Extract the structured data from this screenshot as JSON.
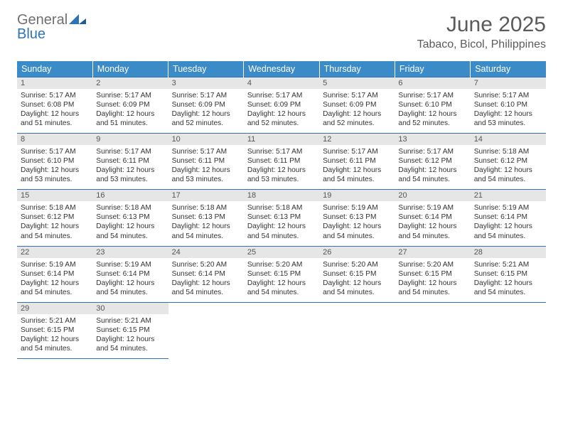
{
  "logo": {
    "word1": "General",
    "word2": "Blue",
    "mark_color": "#2e74b5",
    "word1_color": "#706f6f",
    "word2_color": "#2e74b5"
  },
  "title": "June 2025",
  "location": "Tabaco, Bicol, Philippines",
  "header_bg": "#3b8bc9",
  "daybar_bg": "#e6e6e6",
  "rule_color": "#2e74b5",
  "weekdays": [
    "Sunday",
    "Monday",
    "Tuesday",
    "Wednesday",
    "Thursday",
    "Friday",
    "Saturday"
  ],
  "weeks": [
    [
      {
        "day": "1",
        "sunrise": "5:17 AM",
        "sunset": "6:08 PM",
        "daylight": "12 hours and 51 minutes."
      },
      {
        "day": "2",
        "sunrise": "5:17 AM",
        "sunset": "6:09 PM",
        "daylight": "12 hours and 51 minutes."
      },
      {
        "day": "3",
        "sunrise": "5:17 AM",
        "sunset": "6:09 PM",
        "daylight": "12 hours and 52 minutes."
      },
      {
        "day": "4",
        "sunrise": "5:17 AM",
        "sunset": "6:09 PM",
        "daylight": "12 hours and 52 minutes."
      },
      {
        "day": "5",
        "sunrise": "5:17 AM",
        "sunset": "6:09 PM",
        "daylight": "12 hours and 52 minutes."
      },
      {
        "day": "6",
        "sunrise": "5:17 AM",
        "sunset": "6:10 PM",
        "daylight": "12 hours and 52 minutes."
      },
      {
        "day": "7",
        "sunrise": "5:17 AM",
        "sunset": "6:10 PM",
        "daylight": "12 hours and 53 minutes."
      }
    ],
    [
      {
        "day": "8",
        "sunrise": "5:17 AM",
        "sunset": "6:10 PM",
        "daylight": "12 hours and 53 minutes."
      },
      {
        "day": "9",
        "sunrise": "5:17 AM",
        "sunset": "6:11 PM",
        "daylight": "12 hours and 53 minutes."
      },
      {
        "day": "10",
        "sunrise": "5:17 AM",
        "sunset": "6:11 PM",
        "daylight": "12 hours and 53 minutes."
      },
      {
        "day": "11",
        "sunrise": "5:17 AM",
        "sunset": "6:11 PM",
        "daylight": "12 hours and 53 minutes."
      },
      {
        "day": "12",
        "sunrise": "5:17 AM",
        "sunset": "6:11 PM",
        "daylight": "12 hours and 54 minutes."
      },
      {
        "day": "13",
        "sunrise": "5:17 AM",
        "sunset": "6:12 PM",
        "daylight": "12 hours and 54 minutes."
      },
      {
        "day": "14",
        "sunrise": "5:18 AM",
        "sunset": "6:12 PM",
        "daylight": "12 hours and 54 minutes."
      }
    ],
    [
      {
        "day": "15",
        "sunrise": "5:18 AM",
        "sunset": "6:12 PM",
        "daylight": "12 hours and 54 minutes."
      },
      {
        "day": "16",
        "sunrise": "5:18 AM",
        "sunset": "6:13 PM",
        "daylight": "12 hours and 54 minutes."
      },
      {
        "day": "17",
        "sunrise": "5:18 AM",
        "sunset": "6:13 PM",
        "daylight": "12 hours and 54 minutes."
      },
      {
        "day": "18",
        "sunrise": "5:18 AM",
        "sunset": "6:13 PM",
        "daylight": "12 hours and 54 minutes."
      },
      {
        "day": "19",
        "sunrise": "5:19 AM",
        "sunset": "6:13 PM",
        "daylight": "12 hours and 54 minutes."
      },
      {
        "day": "20",
        "sunrise": "5:19 AM",
        "sunset": "6:14 PM",
        "daylight": "12 hours and 54 minutes."
      },
      {
        "day": "21",
        "sunrise": "5:19 AM",
        "sunset": "6:14 PM",
        "daylight": "12 hours and 54 minutes."
      }
    ],
    [
      {
        "day": "22",
        "sunrise": "5:19 AM",
        "sunset": "6:14 PM",
        "daylight": "12 hours and 54 minutes."
      },
      {
        "day": "23",
        "sunrise": "5:19 AM",
        "sunset": "6:14 PM",
        "daylight": "12 hours and 54 minutes."
      },
      {
        "day": "24",
        "sunrise": "5:20 AM",
        "sunset": "6:14 PM",
        "daylight": "12 hours and 54 minutes."
      },
      {
        "day": "25",
        "sunrise": "5:20 AM",
        "sunset": "6:15 PM",
        "daylight": "12 hours and 54 minutes."
      },
      {
        "day": "26",
        "sunrise": "5:20 AM",
        "sunset": "6:15 PM",
        "daylight": "12 hours and 54 minutes."
      },
      {
        "day": "27",
        "sunrise": "5:20 AM",
        "sunset": "6:15 PM",
        "daylight": "12 hours and 54 minutes."
      },
      {
        "day": "28",
        "sunrise": "5:21 AM",
        "sunset": "6:15 PM",
        "daylight": "12 hours and 54 minutes."
      }
    ],
    [
      {
        "day": "29",
        "sunrise": "5:21 AM",
        "sunset": "6:15 PM",
        "daylight": "12 hours and 54 minutes."
      },
      {
        "day": "30",
        "sunrise": "5:21 AM",
        "sunset": "6:15 PM",
        "daylight": "12 hours and 54 minutes."
      },
      null,
      null,
      null,
      null,
      null
    ]
  ],
  "labels": {
    "sunrise": "Sunrise:",
    "sunset": "Sunset:",
    "daylight": "Daylight:"
  }
}
